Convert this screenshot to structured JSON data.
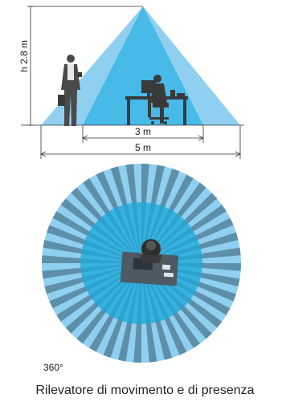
{
  "side_view": {
    "height_label": "h 2.8 m",
    "inner_width_label": "3 m",
    "outer_width_label": "5 m",
    "cone_colors": {
      "outer": "#8fd0f0",
      "inner": "#3bb6e6"
    }
  },
  "top_view": {
    "angle_label": "360°",
    "ray_colors": {
      "light": "#8fd0f0",
      "dark": "#5e8fa9"
    },
    "inner_disc_color": "#1fa8d8"
  },
  "caption": "Rilevatore di movimento e di presenza"
}
